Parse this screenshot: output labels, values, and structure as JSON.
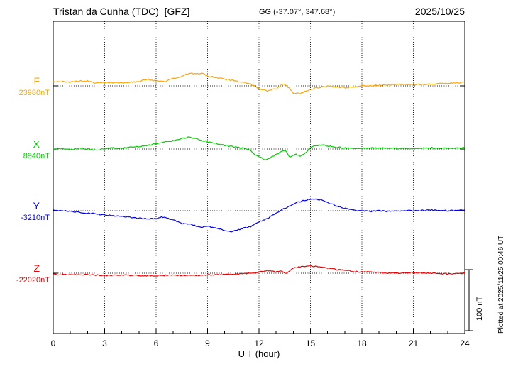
{
  "chart_data": {
    "type": "line",
    "title": "Tristan da Cunha (TDC)  [GFZ]",
    "coords": "GG (-37.07°, 347.68°)",
    "date": "2025/10/25",
    "xlabel": "U T (hour)",
    "xlim": [
      0,
      24
    ],
    "xticks": [
      0,
      3,
      6,
      9,
      12,
      15,
      18,
      21,
      24
    ],
    "scale_bar_label": "100 nT",
    "scale_bar_nT": 100,
    "plotted_at": "Plotted at 2025/11/25 00:46 UT",
    "legend_position": "left",
    "grid": "dotted vertical lines every 3 hours; dotted horizontal baseline per component",
    "series": [
      {
        "name": "F",
        "baseline_label": "23980nT",
        "baseline_nT": 23980,
        "color": "#FFA500",
        "offsets_nT": [
          [
            0,
            7
          ],
          [
            0.5,
            7
          ],
          [
            1,
            6
          ],
          [
            1.5,
            8
          ],
          [
            2,
            8
          ],
          [
            2.5,
            4
          ],
          [
            3,
            6
          ],
          [
            3.5,
            5
          ],
          [
            4,
            5
          ],
          [
            4.5,
            6
          ],
          [
            5,
            7
          ],
          [
            5.5,
            11
          ],
          [
            6,
            8
          ],
          [
            6.5,
            7
          ],
          [
            7,
            12
          ],
          [
            7.5,
            16
          ],
          [
            8,
            21
          ],
          [
            8.3,
            19
          ],
          [
            8.7,
            21
          ],
          [
            9,
            16
          ],
          [
            9.5,
            14
          ],
          [
            10,
            11
          ],
          [
            10.5,
            9
          ],
          [
            11,
            6
          ],
          [
            11.5,
            3
          ],
          [
            12,
            -5
          ],
          [
            12.5,
            -8
          ],
          [
            13,
            -5
          ],
          [
            13.4,
            3
          ],
          [
            13.7,
            -2
          ],
          [
            14,
            -12
          ],
          [
            14.4,
            -13
          ],
          [
            14.8,
            -8
          ],
          [
            15.2,
            -4
          ],
          [
            15.6,
            -2
          ],
          [
            16,
            0
          ],
          [
            16.5,
            -2
          ],
          [
            17,
            -3
          ],
          [
            17.5,
            -2
          ],
          [
            18,
            0
          ],
          [
            19,
            1
          ],
          [
            20,
            2
          ],
          [
            21,
            2
          ],
          [
            22,
            3
          ],
          [
            23,
            4
          ],
          [
            24,
            6
          ]
        ]
      },
      {
        "name": "X",
        "baseline_label": "8940nT",
        "baseline_nT": 8940,
        "color": "#00CC00",
        "offsets_nT": [
          [
            0,
            0
          ],
          [
            0.5,
            1
          ],
          [
            1,
            -1
          ],
          [
            1.5,
            1
          ],
          [
            2,
            0
          ],
          [
            2.5,
            -2
          ],
          [
            3,
            1
          ],
          [
            3.5,
            2
          ],
          [
            4,
            1
          ],
          [
            4.5,
            3
          ],
          [
            5,
            4
          ],
          [
            5.5,
            6
          ],
          [
            6,
            9
          ],
          [
            6.5,
            11
          ],
          [
            7,
            14
          ],
          [
            7.5,
            17
          ],
          [
            7.9,
            20
          ],
          [
            8.2,
            18
          ],
          [
            8.5,
            15
          ],
          [
            9,
            12
          ],
          [
            9.5,
            9
          ],
          [
            10,
            6
          ],
          [
            10.5,
            4
          ],
          [
            11,
            2
          ],
          [
            11.5,
            -2
          ],
          [
            11.8,
            -10
          ],
          [
            12.1,
            -14
          ],
          [
            12.4,
            -18
          ],
          [
            12.7,
            -14
          ],
          [
            13,
            -9
          ],
          [
            13.3,
            -4
          ],
          [
            13.5,
            -1
          ],
          [
            13.8,
            -13
          ],
          [
            14.1,
            -8
          ],
          [
            14.4,
            -11
          ],
          [
            14.7,
            -6
          ],
          [
            15,
            2
          ],
          [
            15.3,
            5
          ],
          [
            15.6,
            7
          ],
          [
            16,
            5
          ],
          [
            16.5,
            3
          ],
          [
            17,
            2
          ],
          [
            17.5,
            1
          ],
          [
            18,
            1
          ],
          [
            19,
            2
          ],
          [
            20,
            1
          ],
          [
            21,
            1
          ],
          [
            22,
            2
          ],
          [
            23,
            1
          ],
          [
            24,
            2
          ]
        ]
      },
      {
        "name": "Y",
        "baseline_label": "-3210nT",
        "baseline_nT": -3210,
        "color": "#0000EE",
        "offsets_nT": [
          [
            0,
            1
          ],
          [
            0.5,
            0
          ],
          [
            1,
            -1
          ],
          [
            1.5,
            -2
          ],
          [
            2,
            -4
          ],
          [
            2.5,
            -5
          ],
          [
            3,
            -7
          ],
          [
            3.5,
            -8
          ],
          [
            4,
            -9
          ],
          [
            4.5,
            -11
          ],
          [
            5,
            -12
          ],
          [
            5.5,
            -13
          ],
          [
            6,
            -13
          ],
          [
            6.3,
            -10
          ],
          [
            6.6,
            -12
          ],
          [
            7,
            -15
          ],
          [
            7.5,
            -21
          ],
          [
            8,
            -22
          ],
          [
            8.5,
            -27
          ],
          [
            9,
            -25
          ],
          [
            9.5,
            -29
          ],
          [
            10,
            -32
          ],
          [
            10.4,
            -34
          ],
          [
            10.8,
            -31
          ],
          [
            11,
            -29
          ],
          [
            11.5,
            -26
          ],
          [
            12,
            -18
          ],
          [
            12.5,
            -13
          ],
          [
            13,
            -4
          ],
          [
            13.5,
            4
          ],
          [
            14,
            11
          ],
          [
            14.5,
            16
          ],
          [
            15,
            19
          ],
          [
            15.3,
            19
          ],
          [
            15.6,
            18
          ],
          [
            16,
            14
          ],
          [
            16.5,
            8
          ],
          [
            17,
            4
          ],
          [
            17.5,
            1
          ],
          [
            18,
            0
          ],
          [
            18.5,
            -1
          ],
          [
            19,
            0
          ],
          [
            19.5,
            -1
          ],
          [
            20,
            0
          ],
          [
            21,
            0
          ],
          [
            22,
            1
          ],
          [
            23,
            0
          ],
          [
            24,
            1
          ]
        ]
      },
      {
        "name": "Z",
        "baseline_label": "-22020nT",
        "baseline_nT": -22020,
        "color": "#EE0000",
        "offsets_nT": [
          [
            0,
            -2
          ],
          [
            1,
            -3
          ],
          [
            2,
            -2
          ],
          [
            3,
            -4
          ],
          [
            4,
            -3
          ],
          [
            5,
            -4
          ],
          [
            6,
            -4
          ],
          [
            7,
            -3
          ],
          [
            8,
            -4
          ],
          [
            9,
            -3
          ],
          [
            10,
            -2
          ],
          [
            11,
            -1
          ],
          [
            12,
            2
          ],
          [
            12.5,
            4
          ],
          [
            13,
            2
          ],
          [
            13.3,
            4
          ],
          [
            13.6,
            -1
          ],
          [
            14,
            8
          ],
          [
            14.5,
            11
          ],
          [
            15,
            12
          ],
          [
            15.5,
            10
          ],
          [
            16,
            8
          ],
          [
            16.5,
            6
          ],
          [
            17,
            5
          ],
          [
            17.5,
            3
          ],
          [
            18,
            2
          ],
          [
            19,
            1
          ],
          [
            20,
            0
          ],
          [
            21,
            1
          ],
          [
            22,
            0
          ],
          [
            23,
            -1
          ],
          [
            24,
            0
          ]
        ]
      }
    ]
  }
}
